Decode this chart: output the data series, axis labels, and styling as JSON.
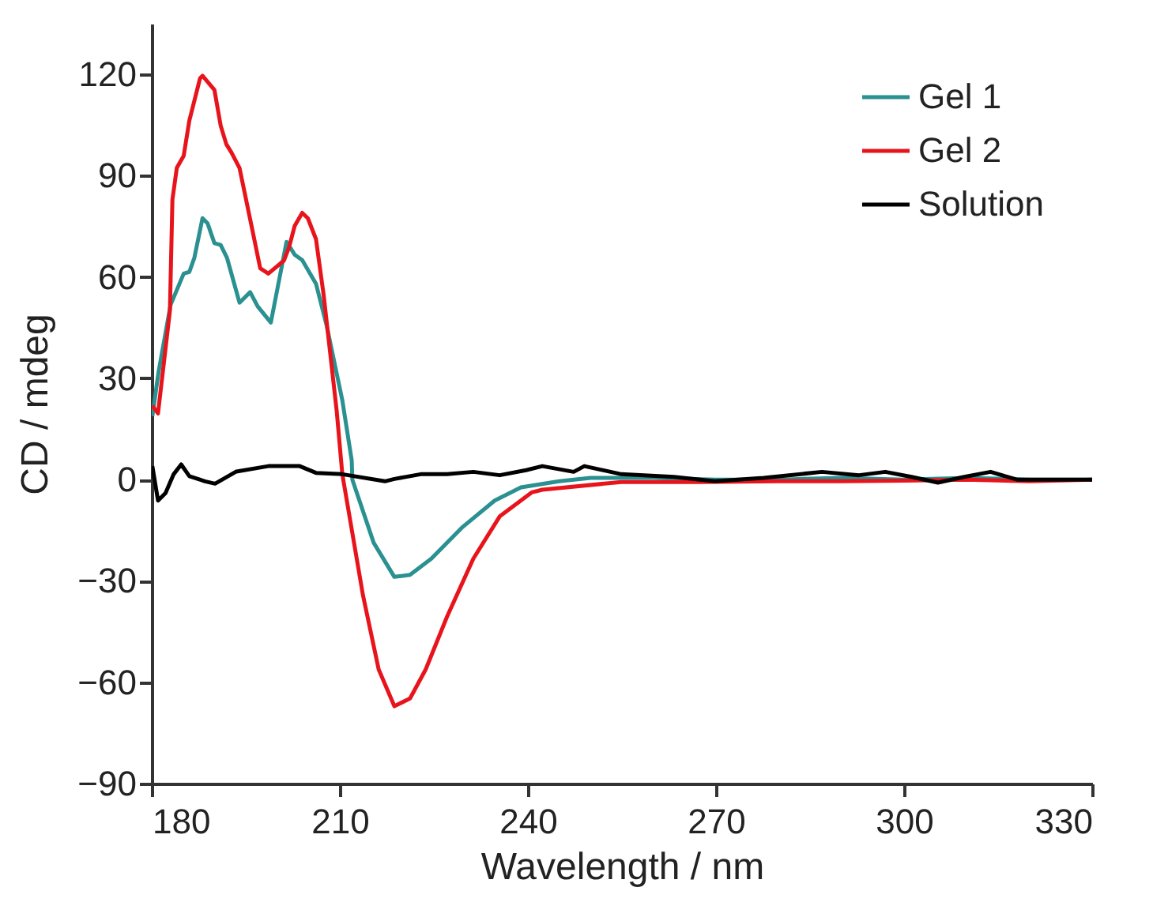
{
  "chart_data": {
    "type": "line",
    "xlabel": "Wavelength / nm",
    "ylabel": "CD / mdeg",
    "xlim": [
      180,
      330
    ],
    "xticks": [
      180,
      210,
      240,
      270,
      300,
      330
    ],
    "ylim": [
      -90,
      135
    ],
    "yticks": [
      -90,
      -60,
      -30,
      0,
      30,
      60,
      90,
      120
    ],
    "grid": false,
    "legend": "top right",
    "line_style": "solid",
    "series": [
      {
        "name": "Gel 1",
        "color": "#2a9090",
        "x": [
          180.1,
          181.1,
          183,
          185.1,
          186,
          186.8,
          188.1,
          188.9,
          190,
          191,
          192,
          194,
          195.7,
          196.9,
          199,
          201.5,
          202.8,
          204,
          206.2,
          207.9,
          210.4,
          211.9,
          212,
          215.4,
          218.7,
          221.2,
          224.6,
          229.6,
          234.7,
          238.9,
          245,
          250,
          260,
          270,
          280,
          290,
          300,
          310,
          320,
          330
        ],
        "values": [
          18.8,
          32,
          51.7,
          61,
          61.5,
          65.7,
          77.4,
          75.9,
          70,
          69.5,
          65.7,
          52.4,
          55.5,
          51.3,
          46.5,
          70.4,
          66.6,
          65,
          58,
          45.6,
          23.5,
          5.7,
          0,
          -18.7,
          -28.8,
          -28.2,
          -23.4,
          -14,
          -6.2,
          -2.3,
          -0.5,
          0.5,
          0.5,
          0,
          0,
          0.5,
          0,
          0.5,
          0,
          0
        ]
      },
      {
        "name": "Gel 2",
        "color": "#e8141c",
        "x": [
          180.1,
          181,
          182.9,
          183.3,
          184,
          185.1,
          186,
          187.7,
          188.1,
          190,
          191,
          191.9,
          192.7,
          194,
          196.1,
          197.3,
          198.6,
          201.1,
          201.9,
          202.8,
          204,
          204.9,
          206.2,
          207.4,
          209.5,
          210.4,
          213.7,
          216.2,
          218.7,
          221.2,
          223.7,
          227.1,
          231.3,
          235.5,
          240.6,
          242.3,
          254.9,
          267.5,
          280,
          290,
          300,
          310,
          320,
          330
        ],
        "values": [
          21.9,
          19.6,
          50,
          82.9,
          92.3,
          95.9,
          106.3,
          118.8,
          119.6,
          115.4,
          104.8,
          99.3,
          96.9,
          92.3,
          73.5,
          62.6,
          61,
          64.9,
          68.8,
          75.1,
          79,
          77.4,
          71.2,
          55,
          20.4,
          1.6,
          -34.3,
          -56.2,
          -67.1,
          -64.8,
          -56.2,
          -40.6,
          -23.4,
          -10.9,
          -3.8,
          -3,
          -0.7,
          -0.7,
          -0.5,
          -0.5,
          -0.3,
          0,
          -0.5,
          0
        ]
      },
      {
        "name": "Solution",
        "color": "#000000",
        "x": [
          180.1,
          181,
          182.2,
          183.5,
          184.7,
          186,
          188.5,
          190.1,
          193.5,
          198.6,
          203.6,
          206.2,
          210.4,
          217.2,
          218.7,
          222.9,
          227.1,
          231.3,
          235.5,
          239.7,
          242.3,
          247.3,
          249,
          254.9,
          263.3,
          269.8,
          277.6,
          286.9,
          292.8,
          297,
          301.2,
          305.4,
          309.6,
          313.8,
          318,
          323,
          330
        ],
        "values": [
          4,
          -6.2,
          -4,
          1.6,
          4.5,
          1,
          -0.5,
          -1.2,
          2.4,
          4,
          4,
          2,
          1.6,
          -0.5,
          0.2,
          1.6,
          1.6,
          2.3,
          1.3,
          2.8,
          4,
          2.3,
          4,
          1.6,
          0.8,
          -0.5,
          0.5,
          2.3,
          1.3,
          2.3,
          0.8,
          -0.9,
          0.8,
          2.3,
          0,
          0,
          0
        ]
      }
    ]
  }
}
